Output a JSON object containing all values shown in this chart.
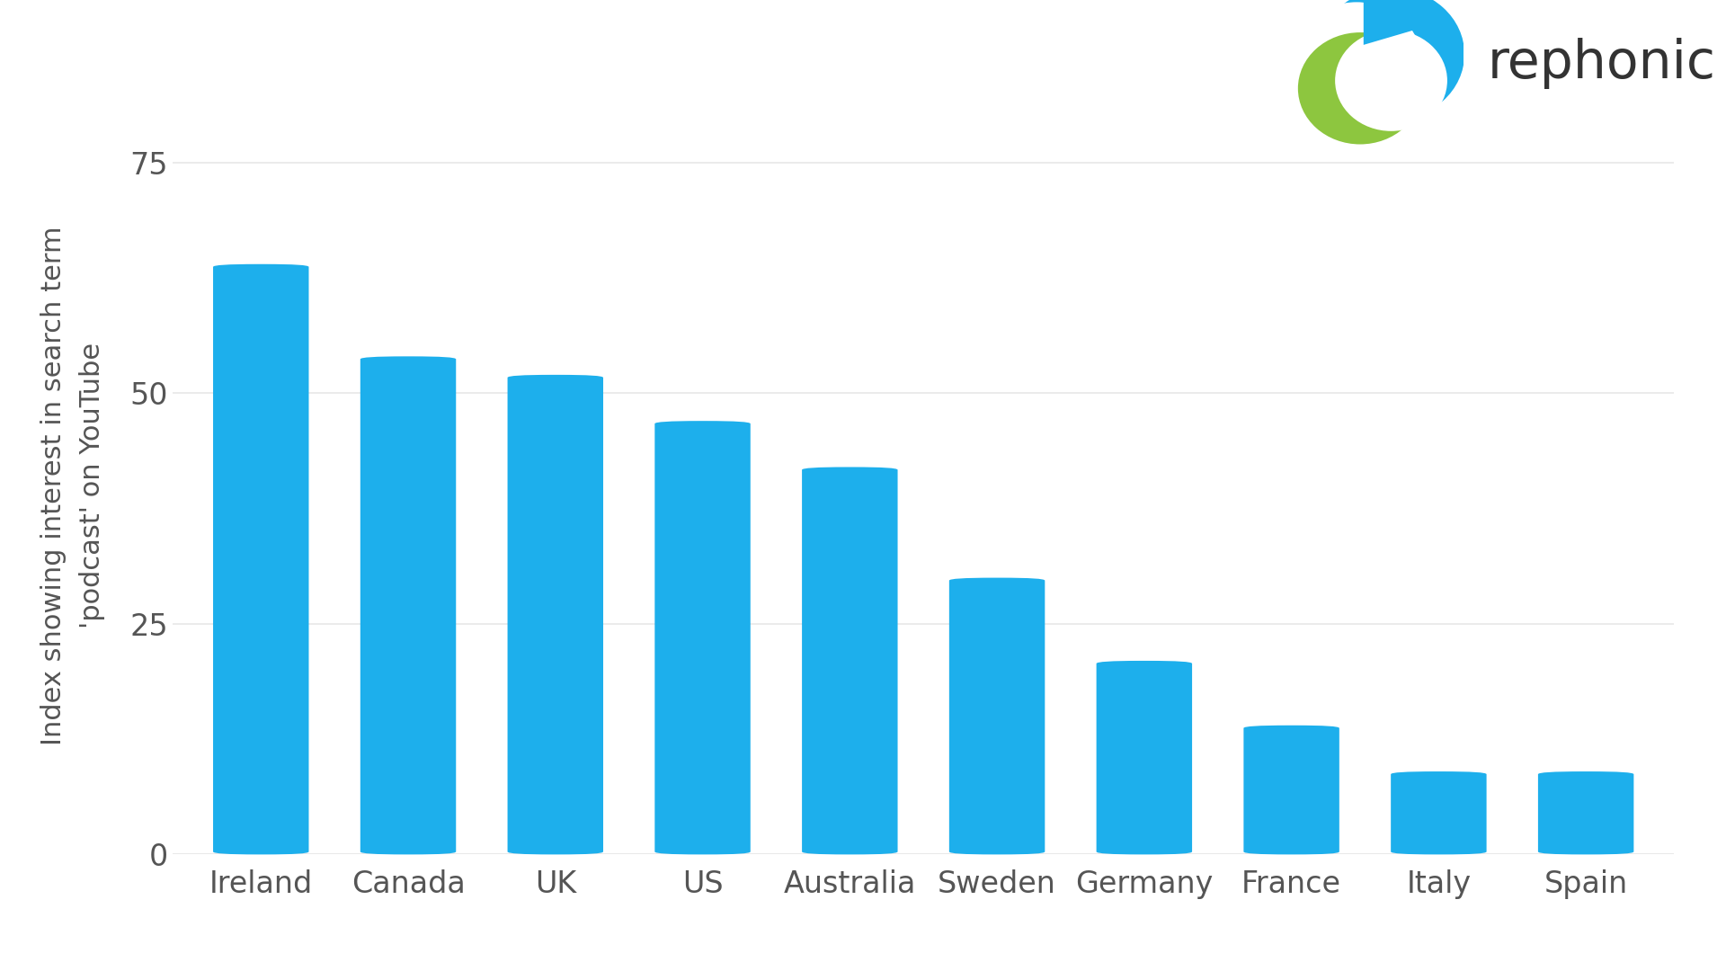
{
  "categories": [
    "Ireland",
    "Canada",
    "UK",
    "US",
    "Australia",
    "Sweden",
    "Germany",
    "France",
    "Italy",
    "Spain"
  ],
  "values": [
    64,
    54,
    52,
    47,
    42,
    30,
    21,
    14,
    9,
    9
  ],
  "bar_color": "#1DAFEC",
  "ylabel": "Index showing interest in search term\n'podcast' on YouTube",
  "yticks": [
    0,
    25,
    50,
    75
  ],
  "ylim": [
    0,
    80
  ],
  "background_color": "#ffffff",
  "grid_color": "#e8e8e8",
  "tick_color": "#555555",
  "bar_width": 0.65,
  "logo_text": "rephonic",
  "logo_text_color": "#333333",
  "logo_icon_blue": "#1DAFEC",
  "logo_icon_green": "#8DC63F",
  "logo_icon_teal": "#1DAFEC"
}
